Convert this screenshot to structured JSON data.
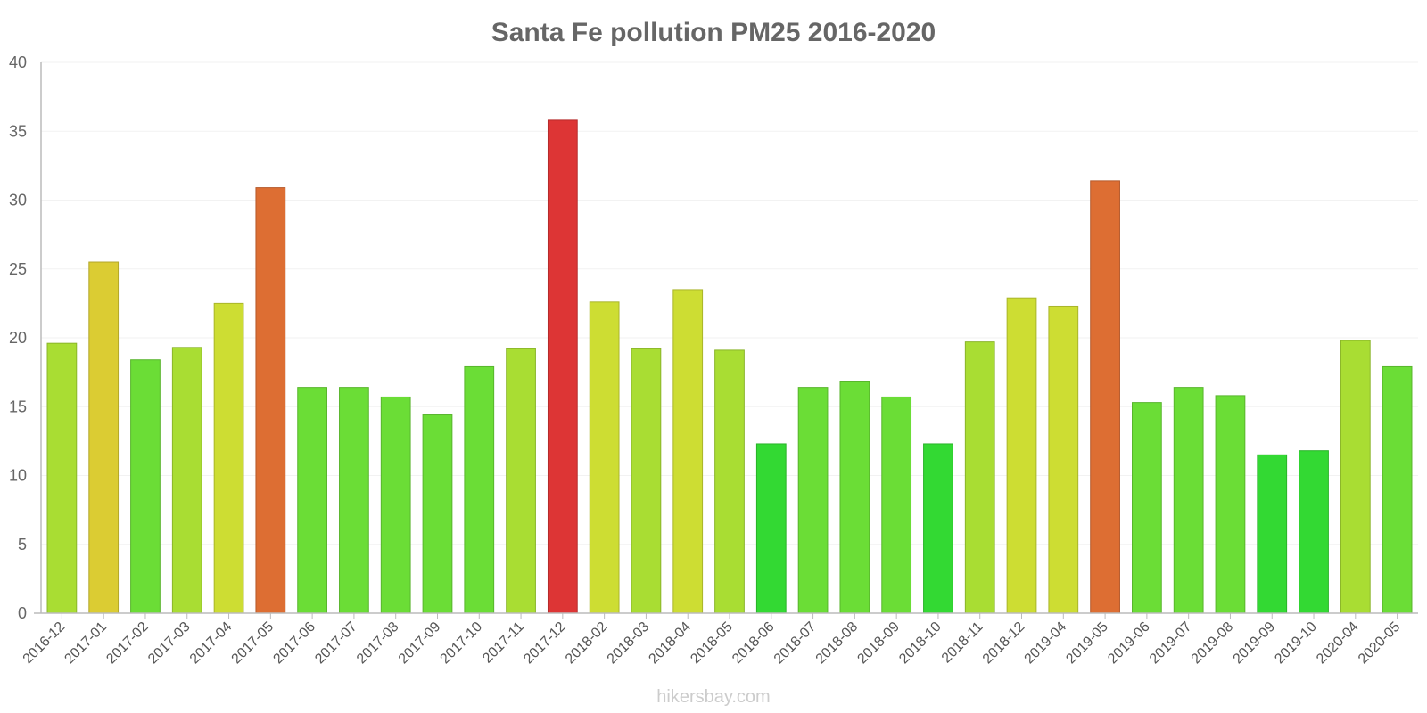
{
  "chart_data": {
    "type": "bar",
    "title": "Santa Fe pollution PM25 2016-2020",
    "xlabel": "",
    "ylabel": "",
    "ylim": [
      0,
      40
    ],
    "yticks": [
      "0",
      "5",
      "10",
      "15",
      "20",
      "25",
      "30",
      "35",
      "40"
    ],
    "grid": true,
    "legend": "none",
    "categories": [
      "2016-12",
      "2017-01",
      "2017-02",
      "2017-03",
      "2017-04",
      "2017-05",
      "2017-06",
      "2017-07",
      "2017-08",
      "2017-09",
      "2017-10",
      "2017-11",
      "2017-12",
      "2018-02",
      "2018-03",
      "2018-04",
      "2018-05",
      "2018-06",
      "2018-07",
      "2018-08",
      "2018-09",
      "2018-10",
      "2018-11",
      "2018-12",
      "2019-04",
      "2019-05",
      "2019-06",
      "2019-07",
      "2019-08",
      "2019-09",
      "2019-10",
      "2020-04",
      "2020-05"
    ],
    "values": [
      19.6,
      25.5,
      18.4,
      19.3,
      22.5,
      30.9,
      16.4,
      16.4,
      15.7,
      14.4,
      17.9,
      19.2,
      35.8,
      22.6,
      19.2,
      23.5,
      19.1,
      12.3,
      16.4,
      16.8,
      15.7,
      12.3,
      19.7,
      22.9,
      22.3,
      31.4,
      15.3,
      16.4,
      15.8,
      11.5,
      11.8,
      19.8,
      17.9
    ]
  },
  "colors": {
    "title": "#666666",
    "axis_text": "#666666",
    "scale": [
      {
        "max": 12.5,
        "fill": "#33d933",
        "stroke": "#29b329"
      },
      {
        "max": 18.5,
        "fill": "#6bdd36",
        "stroke": "#58b52c"
      },
      {
        "max": 20.5,
        "fill": "#a9dd33",
        "stroke": "#8ab52a"
      },
      {
        "max": 24.0,
        "fill": "#cddd33",
        "stroke": "#a9b52a"
      },
      {
        "max": 27.5,
        "fill": "#dbcc33",
        "stroke": "#b3a72a"
      },
      {
        "max": 33.0,
        "fill": "#dd6e33",
        "stroke": "#b5592a"
      },
      {
        "max": 100,
        "fill": "#dd3535",
        "stroke": "#b52b2b"
      }
    ]
  },
  "watermark": "hikersbay.com"
}
